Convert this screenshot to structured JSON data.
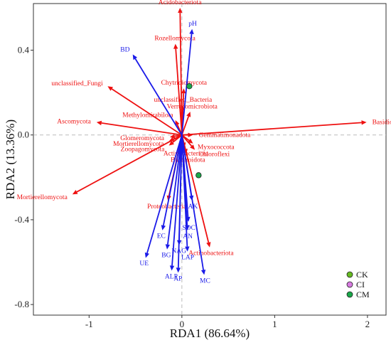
{
  "chart_data": {
    "type": "scatter",
    "xlabel": "RDA1 (86.64%)",
    "ylabel": "RDA2 (13.36%)",
    "xlim": [
      -1.6,
      2.2
    ],
    "ylim": [
      -0.85,
      0.62
    ],
    "x_ticks": [
      -1,
      0,
      1,
      2
    ],
    "y_ticks": [
      -0.8,
      -0.4,
      0.0,
      0.4
    ],
    "x_tick_labels": [
      "-1",
      "0",
      "1",
      "2"
    ],
    "y_tick_labels": [
      "-0.8",
      "-0.4",
      "0.0",
      "0.4"
    ],
    "zero_lines": true,
    "grid": false,
    "legend_position": "bottom-right",
    "colors": {
      "taxa_arrow": "#ee1111",
      "env_arrow": "#1a1ae8",
      "zero_line": "#bbbbbb"
    },
    "taxa_arrows": [
      {
        "label": "Acidobacteriota",
        "x": -0.02,
        "y": 0.6
      },
      {
        "label": "Rozellomycota",
        "x": -0.07,
        "y": 0.43
      },
      {
        "label": "unclassified_Fungi",
        "x": -0.8,
        "y": 0.23
      },
      {
        "label": "Chytridiomycota",
        "x": 0.02,
        "y": 0.22
      },
      {
        "label": "unclassified_Bacteria",
        "x": 0.01,
        "y": 0.14
      },
      {
        "label": "Verrucomicrobiota",
        "x": 0.09,
        "y": 0.11
      },
      {
        "label": "Methylomirabilota",
        "x": -0.07,
        "y": 0.07
      },
      {
        "label": "Ascomycota",
        "x": -0.92,
        "y": 0.06
      },
      {
        "label": "Basidiomycota",
        "x": 1.99,
        "y": 0.06
      },
      {
        "label": "Gemmatimonadota",
        "x": 0.12,
        "y": 0.0
      },
      {
        "label": "Glomeromycota",
        "x": -0.13,
        "y": -0.01
      },
      {
        "label": "Mortierellomycota",
        "x": -0.14,
        "y": -0.03
      },
      {
        "label": "Myxococcota",
        "x": 0.12,
        "y": -0.04
      },
      {
        "label": "Zoopagomycota",
        "x": -0.14,
        "y": -0.05
      },
      {
        "label": "Chloroflexi",
        "x": 0.14,
        "y": -0.07
      },
      {
        "label": "Actinobacteriota",
        "x": 0.03,
        "y": -0.06
      },
      {
        "label": "Bacteroidota",
        "x": 0.05,
        "y": -0.09
      },
      {
        "label": "Mortierellomycota",
        "x": -1.18,
        "y": -0.28
      },
      {
        "label": "Proteobacteria",
        "x": -0.15,
        "y": -0.31
      },
      {
        "label": "Actinobacteriota",
        "x": 0.3,
        "y": -0.53
      }
    ],
    "env_arrows": [
      {
        "label": "pH",
        "x": 0.11,
        "y": 0.5
      },
      {
        "label": "BD",
        "x": -0.53,
        "y": 0.38
      },
      {
        "label": "AK",
        "x": 0.11,
        "y": -0.31
      },
      {
        "label": "SOC",
        "x": 0.07,
        "y": -0.41
      },
      {
        "label": "AN",
        "x": 0.06,
        "y": -0.45
      },
      {
        "label": "EC",
        "x": -0.21,
        "y": -0.45
      },
      {
        "label": "NAG",
        "x": -0.03,
        "y": -0.52
      },
      {
        "label": "BG",
        "x": -0.16,
        "y": -0.54
      },
      {
        "label": "LAP",
        "x": 0.06,
        "y": -0.55
      },
      {
        "label": "UE",
        "x": -0.39,
        "y": -0.58
      },
      {
        "label": "ALP",
        "x": -0.11,
        "y": -0.64
      },
      {
        "label": "AP",
        "x": -0.04,
        "y": -0.65
      },
      {
        "label": "MC",
        "x": 0.24,
        "y": -0.66
      }
    ],
    "samples": [
      {
        "group": "CM",
        "x": 0.08,
        "y": 0.23
      },
      {
        "group": "CM",
        "x": 0.18,
        "y": -0.19
      }
    ],
    "legend": [
      {
        "label": "CK",
        "color": "#66bb22"
      },
      {
        "label": "CI",
        "color": "#d77be0"
      },
      {
        "label": "CM",
        "color": "#1aa84a"
      }
    ]
  }
}
